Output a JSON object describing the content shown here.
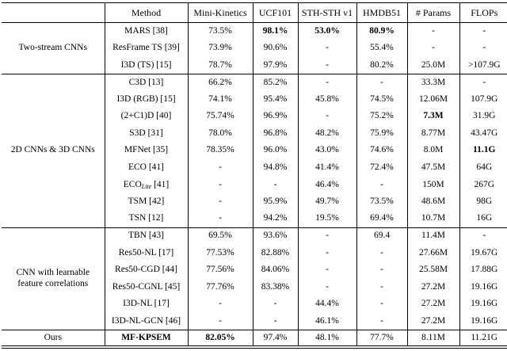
{
  "table": {
    "columns": [
      "",
      "Method",
      "Mini-Kinetics",
      "UCF101",
      "STH-STH v1",
      "HMDB51",
      "# Params",
      "FLOPs"
    ],
    "groups": [
      {
        "label": "Two-stream CNNs",
        "rows": [
          {
            "method": "MARS [38]",
            "cells": [
              "73.5%",
              "98.1%",
              "53.0%",
              "80.9%",
              "-",
              "-"
            ],
            "bold": [
              1,
              2,
              3
            ]
          },
          {
            "method": "ResFrame TS [39]",
            "cells": [
              "73.9%",
              "90.6%",
              "-",
              "55.4%",
              "-",
              "-"
            ]
          },
          {
            "method": "I3D (TS) [15]",
            "cells": [
              "78.7%",
              "97.9%",
              "-",
              "80.2%",
              "25.0M",
              ">107.9G"
            ]
          }
        ]
      },
      {
        "label": "2D CNNs & 3D CNNs",
        "rows": [
          {
            "method": "C3D [13]",
            "cells": [
              "66.2%",
              "85.2%",
              "-",
              "-",
              "33.3M",
              "-"
            ]
          },
          {
            "method": "I3D (RGB) [15]",
            "cells": [
              "74.1%",
              "95.4%",
              "45.8%",
              "74.5%",
              "12.06M",
              "107.9G"
            ]
          },
          {
            "method": "(2+C1)D [40]",
            "cells": [
              "75.74%",
              "96.9%",
              "-",
              "75.2%",
              "7.3M",
              "31.9G"
            ],
            "bold": [
              4
            ]
          },
          {
            "method": "S3D [31]",
            "cells": [
              "78.0%",
              "96.8%",
              "48.2%",
              "75.9%",
              "8.77M",
              "43.47G"
            ]
          },
          {
            "method": "MFNet [35]",
            "cells": [
              "78.35%",
              "96.0%",
              "43.0%",
              "74.6%",
              "8.0M",
              "11.1G"
            ],
            "bold": [
              5
            ]
          },
          {
            "method": "ECO [41]",
            "cells": [
              "-",
              "94.8%",
              "41.4%",
              "72.4%",
              "47.5M",
              "64G"
            ]
          },
          {
            "method": "ECO",
            "method_sub": "Lite",
            "method_suffix": " [41]",
            "cells": [
              "-",
              "-",
              "46.4%",
              "-",
              "150M",
              "267G"
            ]
          },
          {
            "method": "TSM [42]",
            "cells": [
              "-",
              "95.9%",
              "49.7%",
              "73.5%",
              "48.6M",
              "98G"
            ]
          },
          {
            "method": "TSN [12]",
            "cells": [
              "-",
              "94.2%",
              "19.5%",
              "69.4%",
              "10.7M",
              "16G"
            ]
          }
        ]
      },
      {
        "label": "CNN with learnable feature correlations",
        "rows": [
          {
            "method": "TBN [43]",
            "cells": [
              "69.5%",
              "93.6%",
              "-",
              "69.4",
              "11.4M",
              "-"
            ]
          },
          {
            "method": "Res50-NL [17]",
            "cells": [
              "77.53%",
              "82.88%",
              "-",
              "-",
              "27.66M",
              "19.67G"
            ]
          },
          {
            "method": "Res50-CGD [44]",
            "cells": [
              "77.56%",
              "84.06%",
              "-",
              "-",
              "25.58M",
              "17.88G"
            ]
          },
          {
            "method": "Res50-CGNL [45]",
            "cells": [
              "77.76%",
              "83.38%",
              "-",
              "-",
              "27.2M",
              "19.16G"
            ]
          },
          {
            "method": "I3D-NL [17]",
            "cells": [
              "-",
              "-",
              "44.4%",
              "-",
              "27.2M",
              "19.16G"
            ]
          },
          {
            "method": "I3D-NL-GCN [46]",
            "cells": [
              "-",
              "-",
              "46.1%",
              "-",
              "27.2M",
              "19.16G"
            ]
          }
        ]
      },
      {
        "label": "Ours",
        "rows": [
          {
            "method": "MF-KPSEM",
            "bold_method": true,
            "cells": [
              "82.05%",
              "97.4%",
              "48.1%",
              "77.7%",
              "8.11M",
              "11.21G"
            ],
            "bold": [
              0
            ]
          }
        ]
      }
    ]
  }
}
